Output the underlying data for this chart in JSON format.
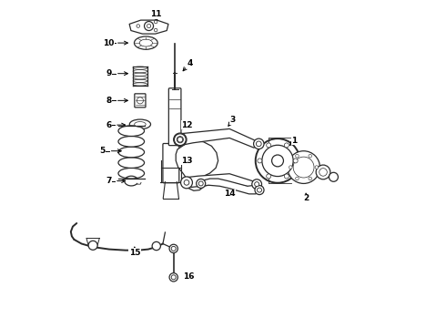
{
  "background_color": "#ffffff",
  "line_color": "#2a2a2a",
  "figsize": [
    4.9,
    3.6
  ],
  "dpi": 100,
  "label_map": {
    "11": [
      0.295,
      0.96,
      0.295,
      0.928
    ],
    "10": [
      0.148,
      0.872,
      0.218,
      0.872
    ],
    "4": [
      0.398,
      0.81,
      0.37,
      0.778
    ],
    "9": [
      0.148,
      0.778,
      0.218,
      0.778
    ],
    "8": [
      0.148,
      0.695,
      0.218,
      0.695
    ],
    "6": [
      0.148,
      0.62,
      0.21,
      0.62
    ],
    "5": [
      0.128,
      0.54,
      0.198,
      0.54
    ],
    "7": [
      0.148,
      0.448,
      0.21,
      0.448
    ],
    "12": [
      0.39,
      0.62,
      0.368,
      0.6
    ],
    "13": [
      0.388,
      0.51,
      0.368,
      0.53
    ],
    "3": [
      0.53,
      0.635,
      0.51,
      0.608
    ],
    "1": [
      0.72,
      0.572,
      0.698,
      0.55
    ],
    "14": [
      0.52,
      0.408,
      0.5,
      0.428
    ],
    "2": [
      0.755,
      0.395,
      0.755,
      0.418
    ],
    "15": [
      0.228,
      0.228,
      0.228,
      0.248
    ],
    "16": [
      0.395,
      0.155,
      0.368,
      0.162
    ]
  }
}
